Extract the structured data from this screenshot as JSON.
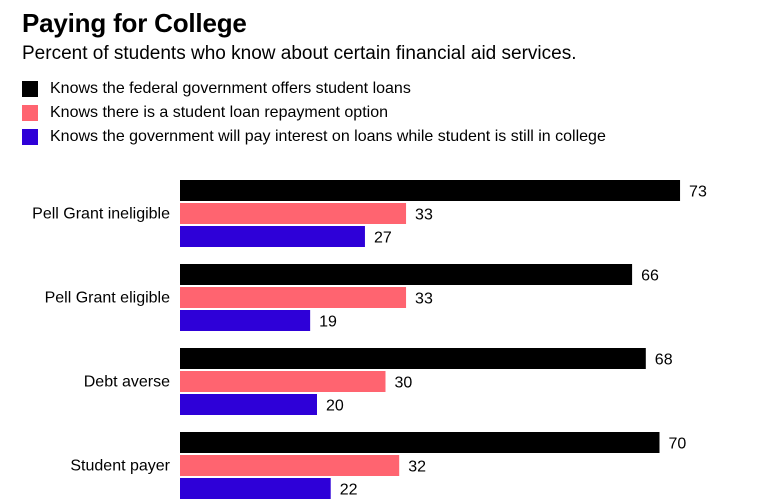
{
  "title": "Paying for College",
  "subtitle": "Percent of students who know about certain financial aid services.",
  "colors": {
    "series1": "#000000",
    "series2": "#ff6470",
    "series3": "#2e00d8",
    "text": "#000000"
  },
  "chart_data": {
    "type": "bar",
    "orientation": "horizontal",
    "title": "Paying for College",
    "subtitle": "Percent of students who know about certain financial aid services.",
    "xlabel": "",
    "ylabel": "",
    "xlim": [
      0,
      80
    ],
    "grid": false,
    "legend_position": "top-left",
    "categories": [
      "Pell Grant ineligible",
      "Pell Grant eligible",
      "Debt averse",
      "Student payer"
    ],
    "series": [
      {
        "name": "Knows the federal government offers student loans",
        "color": "#000000",
        "values": [
          73,
          66,
          68,
          70
        ]
      },
      {
        "name": "Knows there is a student loan repayment option",
        "color": "#ff6470",
        "values": [
          33,
          33,
          30,
          32
        ]
      },
      {
        "name": "Knows the government will pay interest on loans while student is still in college",
        "color": "#2e00d8",
        "values": [
          27,
          19,
          20,
          22
        ]
      }
    ]
  }
}
